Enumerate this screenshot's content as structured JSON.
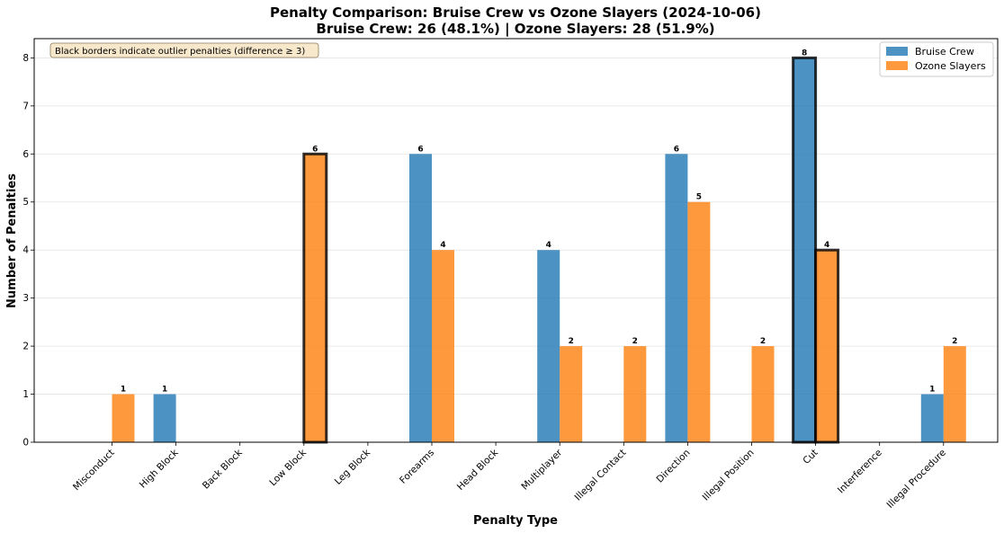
{
  "chart_data": {
    "type": "bar",
    "title": "Penalty Comparison: Bruise Crew vs Ozone Slayers (2024-10-06)",
    "subtitle": "Bruise Crew: 26 (48.1%) | Ozone Slayers: 28 (51.9%)",
    "xlabel": "Penalty Type",
    "ylabel": "Number of Penalties",
    "ylim": [
      0,
      8.4
    ],
    "yticks": [
      0,
      1,
      2,
      3,
      4,
      5,
      6,
      7,
      8
    ],
    "grid": "y",
    "legend_position": "top-right",
    "annotation": "Black borders indicate outlier penalties (difference ≥ 3)",
    "categories": [
      "Misconduct",
      "High Block",
      "Back Block",
      "Low Block",
      "Leg Block",
      "Forearms",
      "Head Block",
      "Multiplayer",
      "Illegal Contact",
      "Direction",
      "Illegal Position",
      "Cut",
      "Interference",
      "Illegal Procedure"
    ],
    "series": [
      {
        "name": "Bruise Crew",
        "color": "#1f77b4",
        "values": [
          0,
          1,
          0,
          0,
          0,
          6,
          0,
          4,
          0,
          6,
          0,
          8,
          0,
          1
        ]
      },
      {
        "name": "Ozone Slayers",
        "color": "#ff7f0e",
        "values": [
          1,
          0,
          0,
          6,
          0,
          4,
          0,
          2,
          2,
          5,
          2,
          4,
          0,
          2
        ]
      }
    ],
    "outlier_categories": [
      "Low Block",
      "Cut"
    ]
  }
}
